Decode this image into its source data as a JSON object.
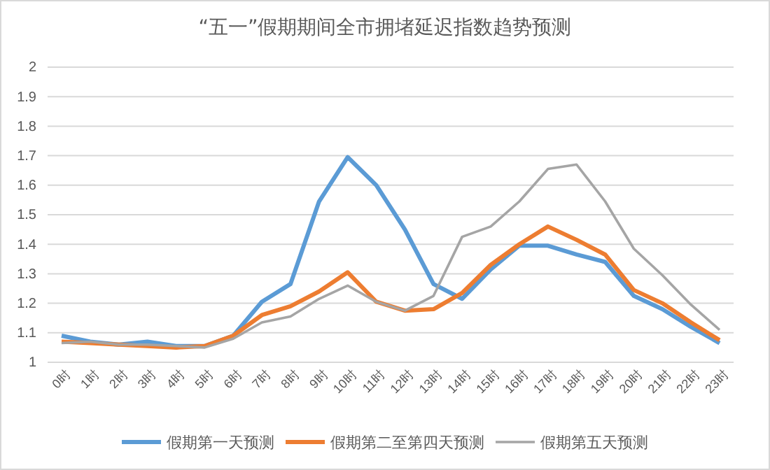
{
  "chart_data": {
    "type": "line",
    "title": "“五一”假期期间全市拥堵延迟指数趋势预测",
    "categories": [
      "0时",
      "1时",
      "2时",
      "3时",
      "4时",
      "5时",
      "6时",
      "7时",
      "8时",
      "9时",
      "10时",
      "11时",
      "12时",
      "13时",
      "14时",
      "15时",
      "16时",
      "17时",
      "18时",
      "19时",
      "20时",
      "21时",
      "22时",
      "23时"
    ],
    "series": [
      {
        "name": "假期第一天预测",
        "color": "#5b9bd5",
        "values": [
          1.09,
          1.07,
          1.06,
          1.07,
          1.055,
          1.055,
          1.09,
          1.205,
          1.265,
          1.545,
          1.695,
          1.6,
          1.45,
          1.265,
          1.215,
          1.315,
          1.395,
          1.395,
          1.365,
          1.34,
          1.225,
          1.18,
          1.12,
          1.065
        ]
      },
      {
        "name": "假期第二至第四天预测",
        "color": "#ed7d31",
        "values": [
          1.07,
          1.065,
          1.06,
          1.055,
          1.05,
          1.055,
          1.09,
          1.16,
          1.19,
          1.24,
          1.305,
          1.205,
          1.175,
          1.18,
          1.235,
          1.33,
          1.4,
          1.46,
          1.415,
          1.365,
          1.245,
          1.2,
          1.135,
          1.075
        ]
      },
      {
        "name": "假期第五天预测",
        "color": "#a5a5a5",
        "values": [
          1.065,
          1.07,
          1.06,
          1.06,
          1.055,
          1.05,
          1.08,
          1.135,
          1.155,
          1.215,
          1.26,
          1.205,
          1.175,
          1.225,
          1.425,
          1.46,
          1.545,
          1.655,
          1.67,
          1.545,
          1.385,
          1.295,
          1.195,
          1.11
        ]
      }
    ],
    "ylim": [
      1,
      2
    ],
    "yticks": [
      1,
      1.1,
      1.2,
      1.3,
      1.4,
      1.5,
      1.6,
      1.7,
      1.8,
      1.9,
      2
    ],
    "grid": "y",
    "legend": "bottom",
    "marker": "none",
    "line_style": "solid"
  }
}
